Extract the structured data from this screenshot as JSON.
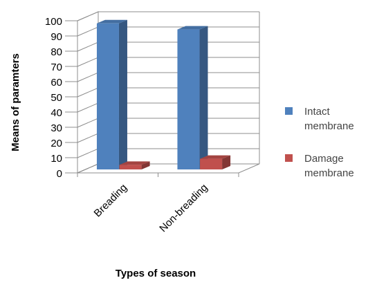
{
  "chart_data": {
    "type": "bar",
    "style": "3d-clustered-column",
    "categories": [
      "Breading",
      "Non-breading"
    ],
    "series": [
      {
        "name": "Intact membrane",
        "values": [
          96,
          92
        ],
        "color": "#4F81BD"
      },
      {
        "name": "Damage membrane",
        "values": [
          3,
          7
        ],
        "color": "#C0504D"
      }
    ],
    "legend_lines": [
      [
        "Intact",
        "membrane"
      ],
      [
        "Damage",
        "membrane"
      ]
    ],
    "xlabel": "Types of season",
    "ylabel": "Means of paramters",
    "ylim": [
      0,
      100
    ],
    "yticks": [
      0,
      10,
      20,
      30,
      40,
      50,
      60,
      70,
      80,
      90,
      100
    ],
    "grid": true,
    "legend_position": "right"
  }
}
